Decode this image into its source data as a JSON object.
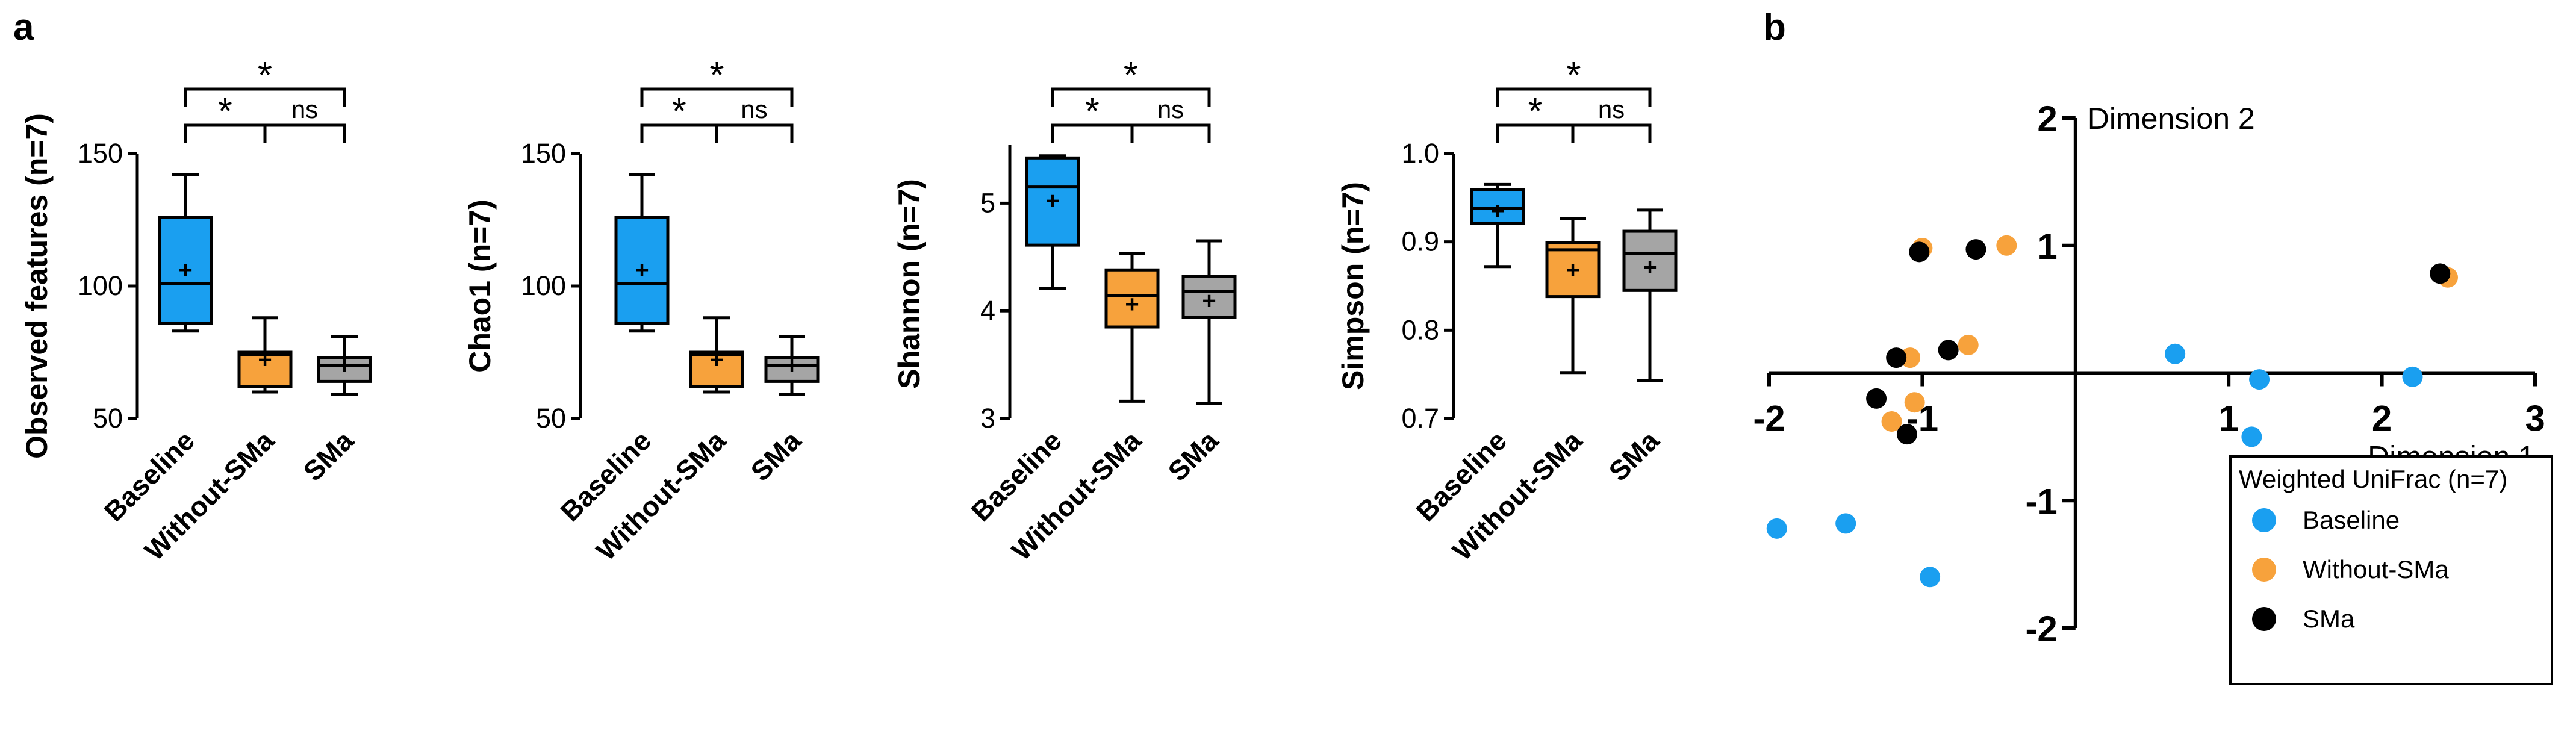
{
  "panel_labels": [
    "a",
    "b"
  ],
  "colors": {
    "Baseline": "#1a9ff0",
    "Without-SMa": "#f7a23c",
    "SMa": "#a5a5a5"
  },
  "chart_data": [
    {
      "type": "box",
      "ylabel": "Observed features (n=7)",
      "ylim": [
        50,
        150
      ],
      "yticks": [
        50,
        100,
        150
      ],
      "categories": [
        "Baseline",
        "Without-SMa",
        "SMa"
      ],
      "boxes": [
        {
          "min": 83,
          "q1": 86,
          "median": 101,
          "q3": 126,
          "max": 142,
          "mean": 106
        },
        {
          "min": 60,
          "q1": 62,
          "median": 74,
          "q3": 75,
          "max": 88,
          "mean": 72
        },
        {
          "min": 59,
          "q1": 64,
          "median": 70,
          "q3": 73,
          "max": 81,
          "mean": 70
        }
      ],
      "significance": [
        {
          "from": 0,
          "to": 2,
          "label": "*"
        },
        {
          "from": 0,
          "to": 1,
          "label": "*"
        },
        {
          "from": 1,
          "to": 2,
          "label": "ns"
        }
      ]
    },
    {
      "type": "box",
      "ylabel": "Chao1 (n=7)",
      "ylim": [
        50,
        150
      ],
      "yticks": [
        50,
        100,
        150
      ],
      "categories": [
        "Baseline",
        "Without-SMa",
        "SMa"
      ],
      "boxes": [
        {
          "min": 83,
          "q1": 86,
          "median": 101,
          "q3": 126,
          "max": 142,
          "mean": 106
        },
        {
          "min": 60,
          "q1": 62,
          "median": 74,
          "q3": 75,
          "max": 88,
          "mean": 72
        },
        {
          "min": 59,
          "q1": 64,
          "median": 70,
          "q3": 73,
          "max": 81,
          "mean": 70
        }
      ],
      "significance": [
        {
          "from": 0,
          "to": 2,
          "label": "*"
        },
        {
          "from": 0,
          "to": 1,
          "label": "*"
        },
        {
          "from": 1,
          "to": 2,
          "label": "ns"
        }
      ]
    },
    {
      "type": "box",
      "ylabel": "Shannon (n=7)",
      "ylim": [
        3,
        5.5
      ],
      "yticks": [
        3,
        4,
        5
      ],
      "categories": [
        "Baseline",
        "Without-SMa",
        "SMa"
      ],
      "boxes": [
        {
          "min": 4.21,
          "q1": 4.61,
          "median": 5.15,
          "q3": 5.42,
          "max": 5.44,
          "mean": 5.02
        },
        {
          "min": 3.16,
          "q1": 3.85,
          "median": 4.14,
          "q3": 4.38,
          "max": 4.53,
          "mean": 4.06
        },
        {
          "min": 3.14,
          "q1": 3.94,
          "median": 4.18,
          "q3": 4.32,
          "max": 4.65,
          "mean": 4.09
        }
      ],
      "significance": [
        {
          "from": 0,
          "to": 2,
          "label": "*"
        },
        {
          "from": 0,
          "to": 1,
          "label": "*"
        },
        {
          "from": 1,
          "to": 2,
          "label": "ns"
        }
      ]
    },
    {
      "type": "box",
      "ylabel": "Simpson (n=7)",
      "ylim": [
        0.7,
        1.0
      ],
      "yticks": [
        0.7,
        0.8,
        0.9,
        1.0
      ],
      "ytick_labels": [
        "0.7",
        "0.8",
        "0.9",
        "1.0"
      ],
      "categories": [
        "Baseline",
        "Without-SMa",
        "SMa"
      ],
      "boxes": [
        {
          "min": 0.872,
          "q1": 0.921,
          "median": 0.938,
          "q3": 0.959,
          "max": 0.965,
          "mean": 0.935
        },
        {
          "min": 0.752,
          "q1": 0.838,
          "median": 0.891,
          "q3": 0.899,
          "max": 0.926,
          "mean": 0.868
        },
        {
          "min": 0.743,
          "q1": 0.845,
          "median": 0.887,
          "q3": 0.912,
          "max": 0.936,
          "mean": 0.871
        }
      ],
      "significance": [
        {
          "from": 0,
          "to": 2,
          "label": "*"
        },
        {
          "from": 0,
          "to": 1,
          "label": "*"
        },
        {
          "from": 1,
          "to": 2,
          "label": "ns"
        }
      ]
    },
    {
      "type": "scatter",
      "xlabel": "Dimension 1",
      "ylabel": "Dimension 2",
      "xlim": [
        -2,
        3
      ],
      "ylim": [
        -2,
        2
      ],
      "xticks": [
        -2,
        -1,
        1,
        2,
        3
      ],
      "yticks": [
        -2,
        -1,
        1,
        2
      ],
      "legend_title": "Weighted UniFrac (n=7)",
      "series": [
        {
          "name": "Baseline",
          "points": [
            [
              0.65,
              0.15
            ],
            [
              1.2,
              -0.05
            ],
            [
              1.15,
              -0.5
            ],
            [
              2.2,
              -0.03
            ],
            [
              -1.95,
              -1.22
            ],
            [
              -1.5,
              -1.18
            ],
            [
              -0.95,
              -1.6
            ]
          ]
        },
        {
          "name": "Without-SMa",
          "points": [
            [
              -1.0,
              0.98
            ],
            [
              -0.45,
              1.0
            ],
            [
              -1.08,
              0.12
            ],
            [
              -1.05,
              -0.23
            ],
            [
              -1.2,
              -0.38
            ],
            [
              -0.7,
              0.22
            ],
            [
              2.43,
              0.75
            ]
          ]
        },
        {
          "name": "SMa",
          "points": [
            [
              -1.02,
              0.95
            ],
            [
              -0.65,
              0.97
            ],
            [
              -1.17,
              0.12
            ],
            [
              -0.83,
              0.18
            ],
            [
              -1.3,
              -0.2
            ],
            [
              -1.1,
              -0.48
            ],
            [
              2.38,
              0.78
            ]
          ]
        }
      ],
      "legend_placement": "bottom-right"
    }
  ]
}
